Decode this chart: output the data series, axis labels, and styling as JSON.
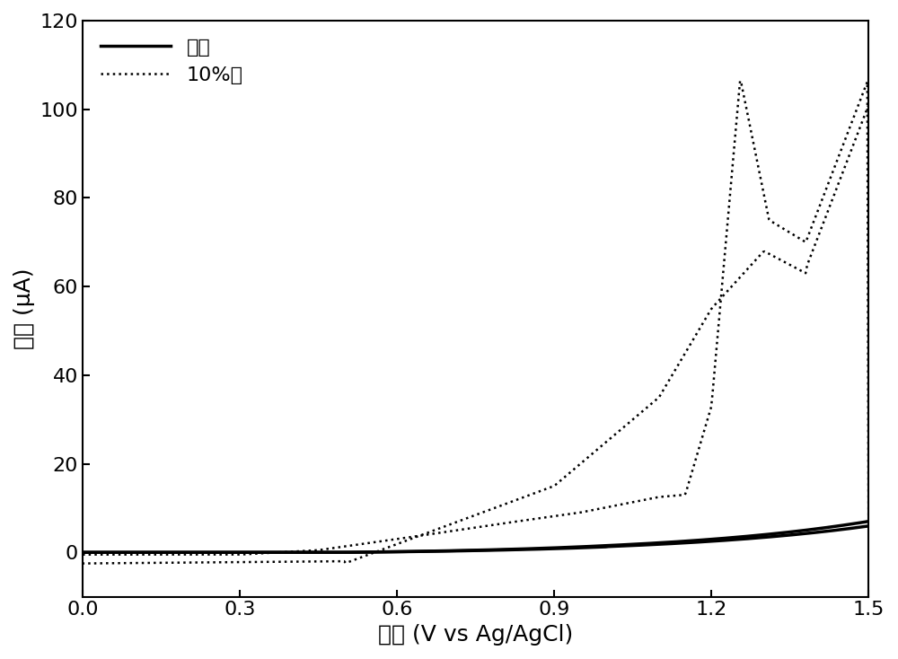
{
  "xlabel": "电位 (V vs Ag/AgCl)",
  "ylabel": "电流 (μA)",
  "xlim": [
    0.0,
    1.5
  ],
  "ylim": [
    -10,
    120
  ],
  "yticks": [
    0,
    20,
    40,
    60,
    80,
    100,
    120
  ],
  "xticks": [
    0.0,
    0.3,
    0.6,
    0.9,
    1.2,
    1.5
  ],
  "legend_solid": "无水",
  "legend_dotted": "10%水",
  "background_color": "#ffffff",
  "line_color": "#000000",
  "xlabel_fontsize": 18,
  "ylabel_fontsize": 18,
  "tick_fontsize": 16,
  "legend_fontsize": 16
}
